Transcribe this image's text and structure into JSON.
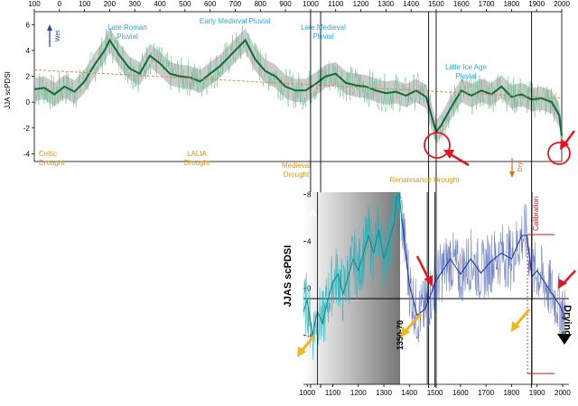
{
  "chart_data": [
    {
      "type": "line",
      "panel": "top",
      "ylabel": "JJA scPDSI",
      "xlim": [
        -100,
        2000
      ],
      "ylim": [
        -4.6,
        7
      ],
      "x_ticks": [
        -100,
        0,
        100,
        200,
        300,
        400,
        500,
        600,
        700,
        800,
        900,
        1000,
        1100,
        1200,
        1300,
        1400,
        1500,
        1600,
        1700,
        1800,
        1900,
        2000
      ],
      "x_tick_labels": [
        "100",
        "0",
        "100",
        "200",
        "300",
        "400",
        "500",
        "600",
        "700",
        "800",
        "900",
        "1000",
        "1100",
        "1200",
        "1300",
        "1400",
        "1500",
        "1600",
        "1700",
        "1800",
        "1900",
        "2000"
      ],
      "y_ticks": [
        -4,
        -2,
        0,
        2,
        4,
        6
      ],
      "wet_label": "Wet",
      "dry_label": "Dry",
      "series": [
        {
          "x": [
            -100,
            -60,
            -20,
            20,
            60,
            100,
            140,
            180,
            200,
            240,
            280,
            320,
            360,
            400,
            440,
            480,
            520,
            560,
            600,
            640,
            680,
            720,
            740,
            780,
            820,
            860,
            900,
            940,
            980,
            1020,
            1060,
            1100,
            1140,
            1180,
            1220,
            1260,
            1300,
            1340,
            1380,
            1420,
            1460,
            1500,
            1520,
            1560,
            1600,
            1640,
            1680,
            1720,
            1760,
            1800,
            1840,
            1880,
            1920,
            1960,
            1990,
            2000
          ],
          "y": [
            1.0,
            1.1,
            0.6,
            1.2,
            0.8,
            1.6,
            2.9,
            4.0,
            4.8,
            3.6,
            2.6,
            2.2,
            3.6,
            3.0,
            2.2,
            2.0,
            1.9,
            1.6,
            2.2,
            2.8,
            3.6,
            4.4,
            4.8,
            3.3,
            2.4,
            2.0,
            1.2,
            0.9,
            0.9,
            1.4,
            2.0,
            2.2,
            1.5,
            1.3,
            1.2,
            0.9,
            0.7,
            0.8,
            0.5,
            0.9,
            0.4,
            -2.3,
            -1.8,
            -0.4,
            0.9,
            0.5,
            0.9,
            0.6,
            1.2,
            0.4,
            0.6,
            0.2,
            0.3,
            0.0,
            -1.0,
            -2.6
          ]
        }
      ],
      "trend": {
        "x": [
          -100,
          2000
        ],
        "y": [
          2.5,
          0.3
        ]
      },
      "annotations": {
        "periods": [
          "Late Roman\nPluvial",
          "Early Medieval Pluvial",
          "Late Medieval\nPluvial",
          "Little Ice Age\nPluvial"
        ],
        "droughts": [
          "Celtic\nDrought",
          "LALIA\nDrought",
          "Medieval\nDrought",
          "Renaissance Drought"
        ]
      },
      "vlines_x": [
        1000,
        1040,
        1470,
        1500,
        1880
      ]
    },
    {
      "type": "line",
      "panel": "inset",
      "panel_letter": "A",
      "ylabel": "JJAS scPDSI",
      "xlim": [
        985,
        2025
      ],
      "ylim": [
        -8.2,
        8.2
      ],
      "x_ticks": [
        1000,
        1100,
        1200,
        1300,
        1400,
        1500,
        1600,
        1700,
        1800,
        1900,
        2000
      ],
      "x_tick_labels": [
        "1000",
        "1100",
        "1200",
        "1300",
        "1400",
        "1500",
        "1600",
        "1700",
        "1800",
        "1900",
        "2000"
      ],
      "y_ticks": [
        -4,
        0,
        4,
        8
      ],
      "y_tick_labels": [
        "-4",
        "0",
        "4",
        "8"
      ],
      "period_label": "1350-70",
      "calibration_label": "Calibration",
      "drying_label": "Drying",
      "series": [
        {
          "name": "",
          "x": [
            985,
            1000,
            1020,
            1040,
            1060,
            1080,
            1100,
            1120,
            1140,
            1160,
            1180,
            1200,
            1220,
            1240,
            1260,
            1280,
            1300,
            1320,
            1340,
            1350,
            1360,
            1370
          ],
          "y": [
            -2,
            -1,
            -4,
            -2,
            -3,
            -1,
            0.5,
            1.2,
            -0.5,
            1,
            2.5,
            1.5,
            3,
            4.5,
            3,
            5,
            2.5,
            4,
            5.5,
            7.8,
            8,
            6
          ]
        },
        {
          "name": "",
          "x": [
            1370,
            1400,
            1430,
            1460,
            1490,
            1500,
            1530,
            1560,
            1600,
            1640,
            1680,
            1720,
            1760,
            1800,
            1840,
            1860,
            1880,
            1900,
            1930,
            1960,
            1990,
            2010
          ],
          "y": [
            6,
            0.3,
            -2.3,
            -1.8,
            -0.2,
            0.5,
            1.5,
            2.5,
            1.2,
            2.5,
            1.3,
            2.3,
            3,
            2.5,
            4.5,
            4.5,
            1,
            1.5,
            0.5,
            -0.5,
            -1.5,
            -2.5
          ]
        }
      ],
      "vlines_x": [
        1040,
        1470,
        1500,
        1880
      ]
    }
  ]
}
